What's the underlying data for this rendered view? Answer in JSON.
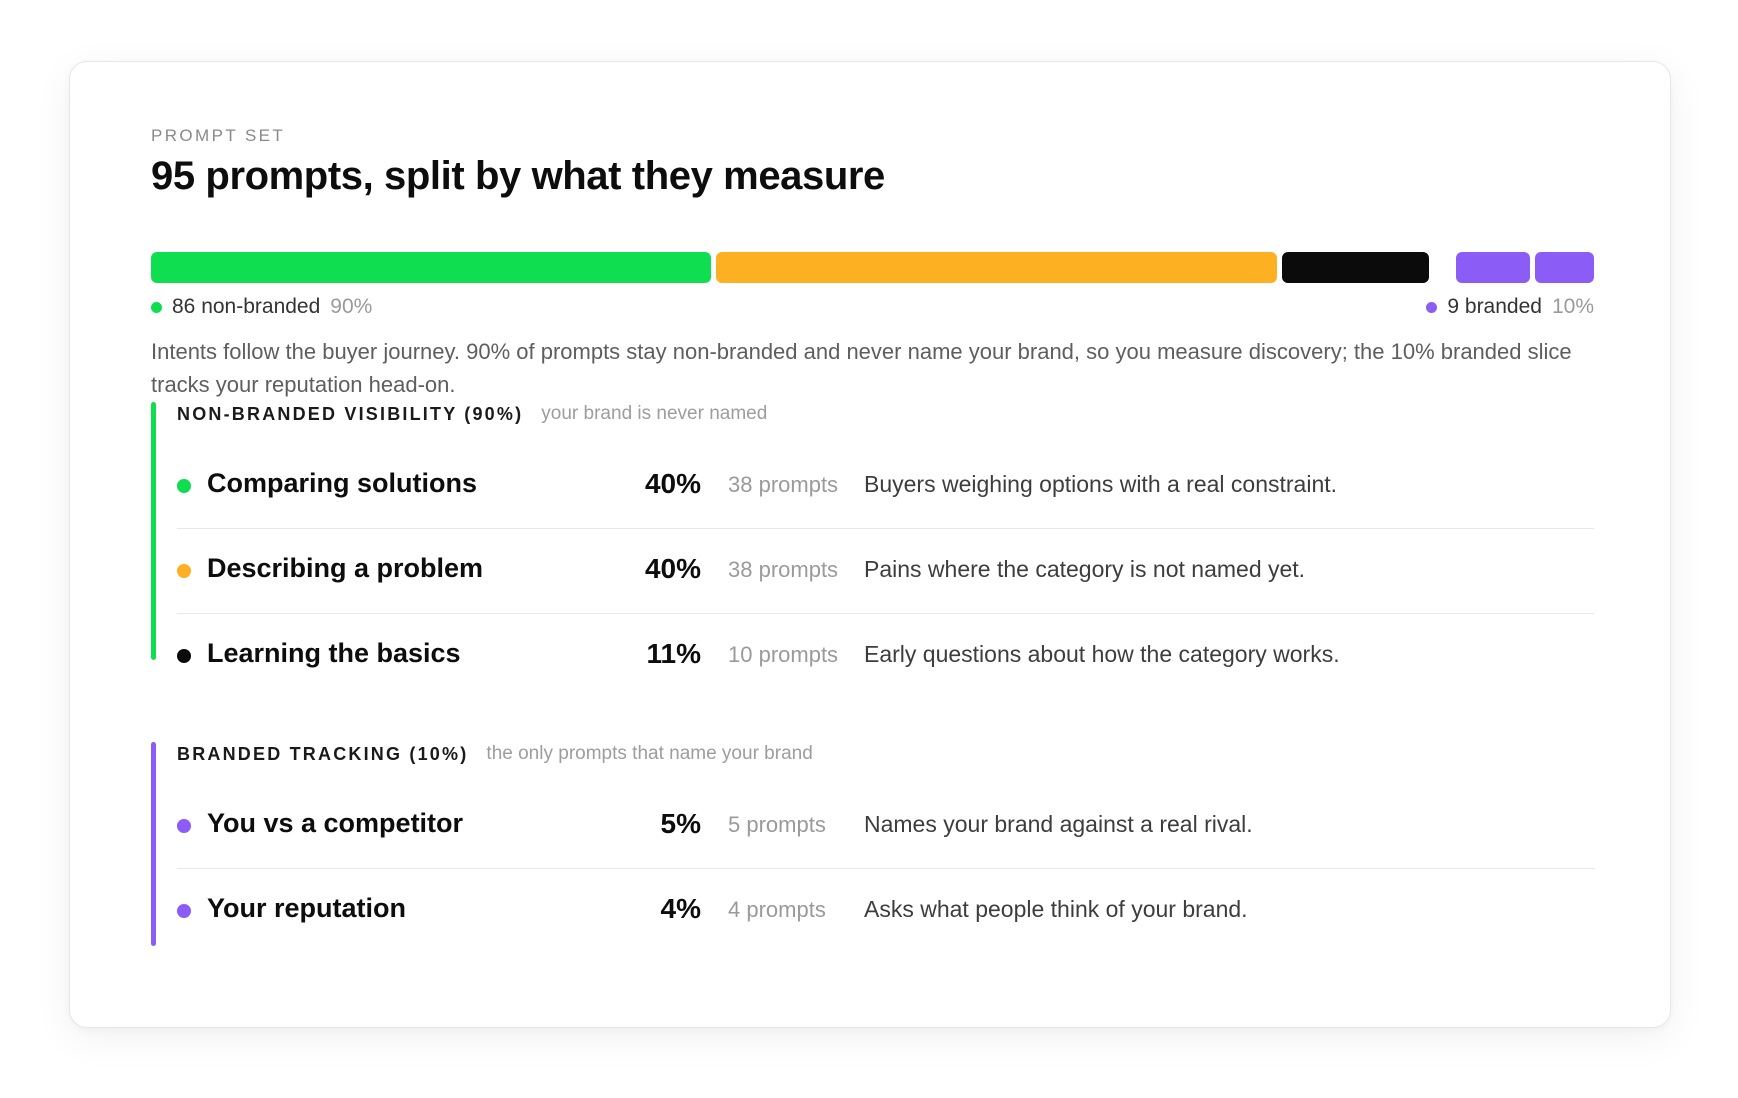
{
  "header": {
    "eyebrow": "PROMPT SET",
    "title": "95 prompts, split by what they measure"
  },
  "colors": {
    "non_branded": "#0ede4f",
    "comparing": "#0ede4f",
    "describing": "#fdb022",
    "learning": "#0b0b0b",
    "branded": "#8b5cf6"
  },
  "split_bar": {
    "segments": [
      {
        "name": "Comparing solutions",
        "prompts": 38,
        "color": "#0ede4f"
      },
      {
        "name": "Describing a problem",
        "prompts": 38,
        "color": "#fdb022"
      },
      {
        "name": "Learning the basics",
        "prompts": 10,
        "color": "#0b0b0b"
      },
      {
        "name": "You vs a competitor",
        "prompts": 5,
        "color": "#8b5cf6"
      },
      {
        "name": "Your reputation",
        "prompts": 4,
        "color": "#8b5cf6"
      }
    ],
    "legend_left": {
      "label": "86 non-branded",
      "pct": "90%"
    },
    "legend_right": {
      "label": "9 branded",
      "pct": "10%"
    }
  },
  "description": "Intents follow the buyer journey. 90% of prompts stay non-branded and never name your brand, so you measure discovery; the 10% branded slice tracks your reputation head-on.",
  "groups": [
    {
      "title": "NON-BRANDED VISIBILITY (90%)",
      "note": "your brand is never named",
      "items": [
        {
          "label": "Comparing solutions",
          "pct": "40%",
          "count": "38 prompts",
          "desc": "Buyers weighing options with a real constraint.",
          "color": "#0ede4f"
        },
        {
          "label": "Describing a problem",
          "pct": "40%",
          "count": "38 prompts",
          "desc": "Pains where the category is not named yet.",
          "color": "#fdb022"
        },
        {
          "label": "Learning the basics",
          "pct": "11%",
          "count": "10 prompts",
          "desc": "Early questions about how the category works.",
          "color": "#0b0b0b"
        }
      ]
    },
    {
      "title": "BRANDED TRACKING (10%)",
      "note": "the only prompts that name your brand",
      "items": [
        {
          "label": "You vs a competitor",
          "pct": "5%",
          "count": "5 prompts",
          "desc": "Names your brand against a real rival.",
          "color": "#8b5cf6"
        },
        {
          "label": "Your reputation",
          "pct": "4%",
          "count": "4 prompts",
          "desc": "Asks what people think of your brand.",
          "color": "#8b5cf6"
        }
      ]
    }
  ]
}
